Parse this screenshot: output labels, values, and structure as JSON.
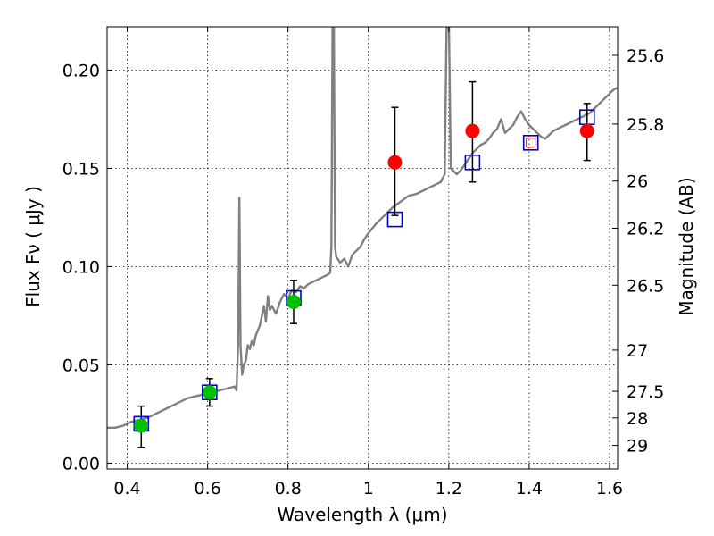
{
  "chart_data": {
    "type": "scatter",
    "xlabel": "Wavelength  λ (μm)",
    "ylabel": "Flux  Fν  ( μJy )",
    "y2label": "Magnitude (AB)",
    "xlim": [
      0.35,
      1.62
    ],
    "ylim": [
      -0.003,
      0.222
    ],
    "x_ticks": [
      0.4,
      0.6,
      0.8,
      1.0,
      1.2,
      1.4,
      1.6
    ],
    "x_tick_labels": [
      "0.4",
      "0.6",
      "0.8",
      "1",
      "1.2",
      "1.4",
      "1.6"
    ],
    "y_ticks": [
      0.0,
      0.05,
      0.1,
      0.15,
      0.2
    ],
    "y_tick_labels": [
      "0.00",
      "0.05",
      "0.10",
      "0.15",
      "0.20"
    ],
    "y2_ticks": [
      {
        "label": "25.6",
        "flux": 0.2075
      },
      {
        "label": "25.8",
        "flux": 0.1725
      },
      {
        "label": "26",
        "flux": 0.1435
      },
      {
        "label": "26.2",
        "flux": 0.1195
      },
      {
        "label": "26.5",
        "flux": 0.0905
      },
      {
        "label": "27",
        "flux": 0.0575
      },
      {
        "label": "27.5",
        "flux": 0.0365
      },
      {
        "label": "28",
        "flux": 0.023
      },
      {
        "label": "29",
        "flux": 0.009
      }
    ],
    "grid": true,
    "colors": {
      "spectrum": "#808080",
      "optical_points": "#00c000",
      "nir_points": "#ff0000",
      "model_boxes": "#0000cc",
      "upper_box_inner": "#cc0000",
      "errorbars": "#000000"
    },
    "spectrum": [
      [
        0.35,
        0.018
      ],
      [
        0.37,
        0.018
      ],
      [
        0.39,
        0.019
      ],
      [
        0.41,
        0.021
      ],
      [
        0.43,
        0.022
      ],
      [
        0.45,
        0.023
      ],
      [
        0.47,
        0.025
      ],
      [
        0.49,
        0.027
      ],
      [
        0.51,
        0.029
      ],
      [
        0.53,
        0.031
      ],
      [
        0.55,
        0.033
      ],
      [
        0.57,
        0.034
      ],
      [
        0.59,
        0.035
      ],
      [
        0.61,
        0.036
      ],
      [
        0.63,
        0.037
      ],
      [
        0.65,
        0.038
      ],
      [
        0.668,
        0.039
      ],
      [
        0.672,
        0.037
      ],
      [
        0.676,
        0.06
      ],
      [
        0.679,
        0.135
      ],
      [
        0.682,
        0.06
      ],
      [
        0.686,
        0.045
      ],
      [
        0.69,
        0.05
      ],
      [
        0.695,
        0.052
      ],
      [
        0.7,
        0.06
      ],
      [
        0.705,
        0.058
      ],
      [
        0.71,
        0.062
      ],
      [
        0.715,
        0.06
      ],
      [
        0.72,
        0.065
      ],
      [
        0.73,
        0.07
      ],
      [
        0.74,
        0.08
      ],
      [
        0.745,
        0.072
      ],
      [
        0.75,
        0.085
      ],
      [
        0.755,
        0.078
      ],
      [
        0.76,
        0.08
      ],
      [
        0.77,
        0.076
      ],
      [
        0.78,
        0.082
      ],
      [
        0.79,
        0.086
      ],
      [
        0.8,
        0.084
      ],
      [
        0.81,
        0.088
      ],
      [
        0.82,
        0.087
      ],
      [
        0.83,
        0.09
      ],
      [
        0.84,
        0.089
      ],
      [
        0.85,
        0.091
      ],
      [
        0.86,
        0.092
      ],
      [
        0.87,
        0.093
      ],
      [
        0.88,
        0.094
      ],
      [
        0.89,
        0.095
      ],
      [
        0.9,
        0.096
      ],
      [
        0.905,
        0.097
      ],
      [
        0.908,
        0.11
      ],
      [
        0.911,
        0.23
      ],
      [
        0.914,
        0.23
      ],
      [
        0.917,
        0.11
      ],
      [
        0.92,
        0.105
      ],
      [
        0.93,
        0.102
      ],
      [
        0.94,
        0.104
      ],
      [
        0.95,
        0.1
      ],
      [
        0.96,
        0.106
      ],
      [
        0.97,
        0.108
      ],
      [
        0.98,
        0.11
      ],
      [
        0.99,
        0.114
      ],
      [
        1.0,
        0.117
      ],
      [
        1.02,
        0.122
      ],
      [
        1.04,
        0.126
      ],
      [
        1.06,
        0.13
      ],
      [
        1.08,
        0.133
      ],
      [
        1.1,
        0.136
      ],
      [
        1.12,
        0.137
      ],
      [
        1.14,
        0.139
      ],
      [
        1.16,
        0.141
      ],
      [
        1.18,
        0.143
      ],
      [
        1.19,
        0.147
      ],
      [
        1.195,
        0.23
      ],
      [
        1.2,
        0.23
      ],
      [
        1.205,
        0.15
      ],
      [
        1.21,
        0.149
      ],
      [
        1.22,
        0.147
      ],
      [
        1.23,
        0.149
      ],
      [
        1.24,
        0.152
      ],
      [
        1.25,
        0.155
      ],
      [
        1.26,
        0.158
      ],
      [
        1.27,
        0.16
      ],
      [
        1.28,
        0.162
      ],
      [
        1.29,
        0.163
      ],
      [
        1.3,
        0.165
      ],
      [
        1.31,
        0.168
      ],
      [
        1.32,
        0.17
      ],
      [
        1.33,
        0.175
      ],
      [
        1.34,
        0.168
      ],
      [
        1.35,
        0.17
      ],
      [
        1.36,
        0.172
      ],
      [
        1.37,
        0.176
      ],
      [
        1.38,
        0.179
      ],
      [
        1.39,
        0.175
      ],
      [
        1.4,
        0.172
      ],
      [
        1.41,
        0.17
      ],
      [
        1.42,
        0.168
      ],
      [
        1.43,
        0.166
      ],
      [
        1.44,
        0.165
      ],
      [
        1.45,
        0.167
      ],
      [
        1.46,
        0.169
      ],
      [
        1.47,
        0.17
      ],
      [
        1.48,
        0.171
      ],
      [
        1.49,
        0.172
      ],
      [
        1.5,
        0.173
      ],
      [
        1.51,
        0.174
      ],
      [
        1.52,
        0.175
      ],
      [
        1.53,
        0.176
      ],
      [
        1.54,
        0.177
      ],
      [
        1.55,
        0.178
      ],
      [
        1.56,
        0.18
      ],
      [
        1.57,
        0.182
      ],
      [
        1.58,
        0.184
      ],
      [
        1.59,
        0.186
      ],
      [
        1.6,
        0.188
      ],
      [
        1.61,
        0.19
      ],
      [
        1.62,
        0.191
      ]
    ],
    "observed_optical": [
      {
        "x": 0.435,
        "y": 0.019,
        "err_low": 0.011,
        "err_high": 0.01
      },
      {
        "x": 0.605,
        "y": 0.036,
        "err_low": 0.007,
        "err_high": 0.007
      },
      {
        "x": 0.814,
        "y": 0.082,
        "err_low": 0.011,
        "err_high": 0.011
      }
    ],
    "observed_nir": [
      {
        "x": 1.066,
        "y": 0.153,
        "err_low": 0.027,
        "err_high": 0.028
      },
      {
        "x": 1.259,
        "y": 0.169,
        "err_low": 0.026,
        "err_high": 0.025
      },
      {
        "x": 1.544,
        "y": 0.169,
        "err_low": 0.015,
        "err_high": 0.014
      }
    ],
    "model_boxes": [
      {
        "x": 0.435,
        "y": 0.02
      },
      {
        "x": 0.605,
        "y": 0.036
      },
      {
        "x": 0.814,
        "y": 0.084
      },
      {
        "x": 1.066,
        "y": 0.124
      },
      {
        "x": 1.259,
        "y": 0.153
      },
      {
        "x": 1.404,
        "y": 0.163
      },
      {
        "x": 1.544,
        "y": 0.176
      }
    ]
  }
}
